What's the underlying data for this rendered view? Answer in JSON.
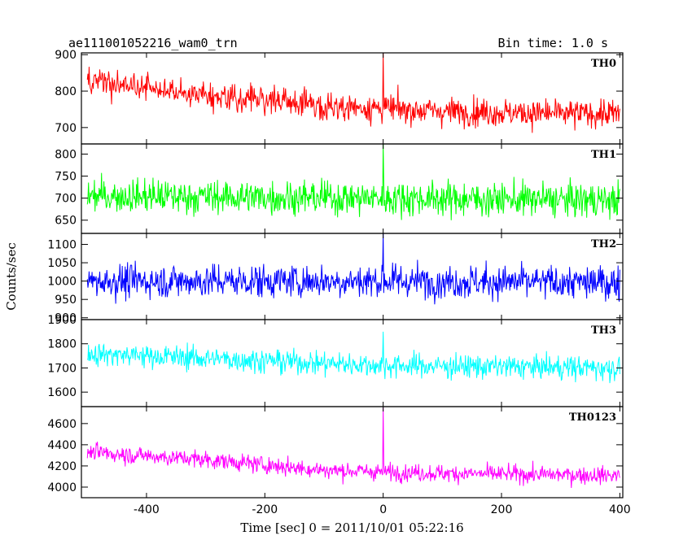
{
  "header": {
    "title": "ae111001052216_wam0_trn",
    "bin_time": "Bin time: 1.0 s"
  },
  "chart_data": {
    "type": "line",
    "xlabel": "Time [sec] 0 = 2011/10/01 05:22:16",
    "ylabel": "Counts/sec",
    "xlim": [
      -510,
      405
    ],
    "x_ticks": [
      -400,
      -200,
      0,
      200,
      400
    ],
    "x_range": [
      -500,
      400
    ],
    "panels": [
      {
        "name": "TH0",
        "color": "#ff0000",
        "ylim": [
          655,
          905
        ],
        "ticks": [
          700,
          800,
          900
        ],
        "trend": [
          [
            -500,
            825
          ],
          [
            -300,
            790
          ],
          [
            -100,
            760
          ],
          [
            100,
            745
          ],
          [
            300,
            738
          ],
          [
            400,
            738
          ]
        ],
        "noise": 35,
        "spike_value": 905
      },
      {
        "name": "TH1",
        "color": "#00ff00",
        "ylim": [
          620,
          823
        ],
        "ticks": [
          650,
          700,
          750,
          800
        ],
        "trend": [
          [
            -500,
            705
          ],
          [
            0,
            700
          ],
          [
            400,
            695
          ]
        ],
        "noise": 35,
        "spike_value": 823
      },
      {
        "name": "TH2",
        "color": "#0000ff",
        "ylim": [
          895,
          1130
        ],
        "ticks": [
          900,
          950,
          1000,
          1050,
          1100
        ],
        "trend": [
          [
            -500,
            1000
          ],
          [
            0,
            1000
          ],
          [
            400,
            995
          ]
        ],
        "noise": 42,
        "spike_value": 1130
      },
      {
        "name": "TH3",
        "color": "#00ffff",
        "ylim": [
          1540,
          1900
        ],
        "ticks": [
          1600,
          1700,
          1800,
          1900
        ],
        "trend": [
          [
            -500,
            1760
          ],
          [
            -300,
            1740
          ],
          [
            0,
            1710
          ],
          [
            400,
            1700
          ]
        ],
        "noise": 45,
        "spike_value": 1850
      },
      {
        "name": "TH0123",
        "color": "#ff00ff",
        "ylim": [
          3900,
          4760
        ],
        "ticks": [
          4000,
          4200,
          4400,
          4600
        ],
        "trend": [
          [
            -500,
            4330
          ],
          [
            -300,
            4260
          ],
          [
            -100,
            4160
          ],
          [
            100,
            4130
          ],
          [
            400,
            4110
          ]
        ],
        "noise": 75,
        "spike_value": 4750
      }
    ]
  }
}
